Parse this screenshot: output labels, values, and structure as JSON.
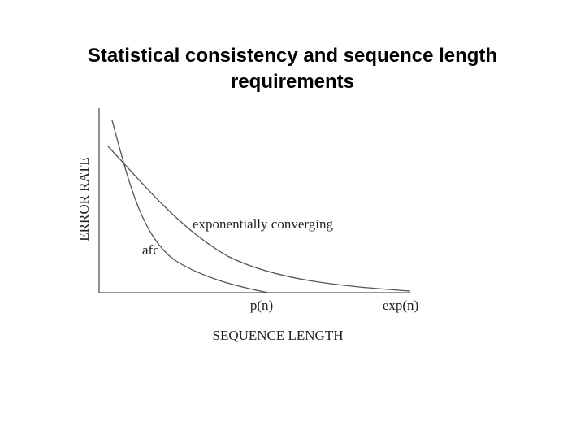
{
  "title": {
    "line1": "Statistical consistency and sequence length",
    "line2": "requirements"
  },
  "diagram": {
    "y_axis_label": "ERROR RATE",
    "x_axis_label": "SEQUENCE LENGTH",
    "curves": [
      {
        "label": "exponentially converging"
      },
      {
        "label": "afc"
      }
    ],
    "x_marks": [
      {
        "label": "p(n)"
      },
      {
        "label": "exp(n)"
      }
    ]
  }
}
